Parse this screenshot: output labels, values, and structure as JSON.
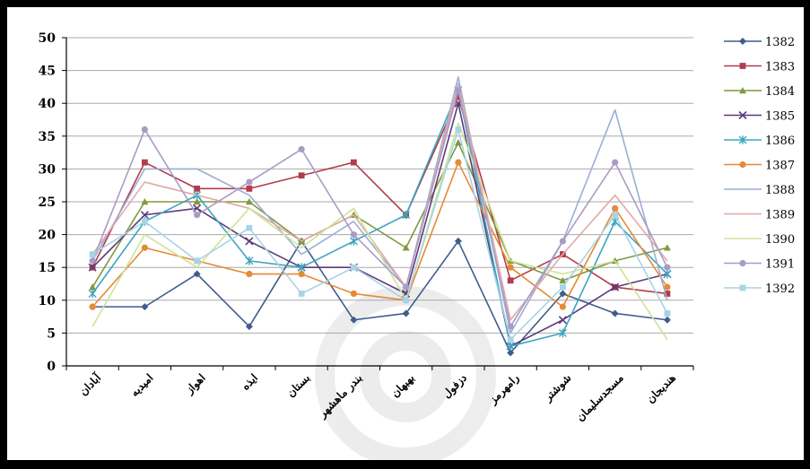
{
  "chart_data": {
    "type": "line",
    "title": "",
    "xlabel": "",
    "ylabel": "",
    "ylim": [
      0,
      50
    ],
    "yticks": [
      0,
      5,
      10,
      15,
      20,
      25,
      30,
      35,
      40,
      45,
      50
    ],
    "grid": "horizontal",
    "legend_position": "right",
    "categories": [
      "آبادان",
      "امیدیه",
      "اهواز",
      "ایذه",
      "بستان",
      "بندر ماهشهر",
      "بهبهان",
      "دزفول",
      "رامهرمز",
      "شوشتر",
      "مسجدسلیمان",
      "هندیجان"
    ],
    "series": [
      {
        "name": "1382",
        "color": "#3f5c8c",
        "marker": "diamond",
        "values": [
          9,
          9,
          14,
          6,
          19,
          7,
          8,
          19,
          2,
          11,
          8,
          7
        ]
      },
      {
        "name": "1383",
        "color": "#b33b4b",
        "marker": "square",
        "values": [
          15,
          31,
          27,
          27,
          29,
          31,
          23,
          41,
          13,
          17,
          12,
          11
        ]
      },
      {
        "name": "1384",
        "color": "#7f9a3c",
        "marker": "triangle",
        "values": [
          12,
          25,
          25,
          25,
          19,
          23,
          18,
          34,
          16,
          13,
          16,
          18
        ]
      },
      {
        "name": "1385",
        "color": "#5e3a7a",
        "marker": "x",
        "values": [
          15,
          23,
          24,
          19,
          15,
          15,
          11,
          40,
          3,
          7,
          12,
          14
        ]
      },
      {
        "name": "1386",
        "color": "#3aa5c2",
        "marker": "star",
        "values": [
          11,
          22,
          26,
          16,
          15,
          19,
          23,
          42,
          3,
          5,
          22,
          14
        ]
      },
      {
        "name": "1387",
        "color": "#e58a35",
        "marker": "circle",
        "values": [
          9,
          18,
          16,
          14,
          14,
          11,
          10,
          31,
          15,
          9,
          24,
          12
        ]
      },
      {
        "name": "1388",
        "color": "#9aaed6",
        "marker": "none",
        "values": [
          16,
          30,
          30,
          26,
          17,
          22,
          12,
          44,
          5,
          19,
          39,
          10
        ]
      },
      {
        "name": "1389",
        "color": "#e2a8a8",
        "marker": "none",
        "values": [
          17,
          28,
          26,
          24,
          19,
          23,
          12,
          43,
          7,
          17,
          26,
          16
        ]
      },
      {
        "name": "1390",
        "color": "#cfe39a",
        "marker": "none",
        "values": [
          6,
          20,
          15,
          24,
          18,
          24,
          10,
          37,
          16,
          14,
          16,
          4
        ]
      },
      {
        "name": "1391",
        "color": "#a99bc4",
        "marker": "circle",
        "values": [
          16,
          36,
          23,
          28,
          33,
          20,
          12,
          42,
          6,
          19,
          31,
          15
        ]
      },
      {
        "name": "1392",
        "color": "#a7d4e4",
        "marker": "square",
        "values": [
          17,
          22,
          16,
          21,
          11,
          15,
          10,
          36,
          4,
          12,
          23,
          8
        ]
      }
    ]
  }
}
